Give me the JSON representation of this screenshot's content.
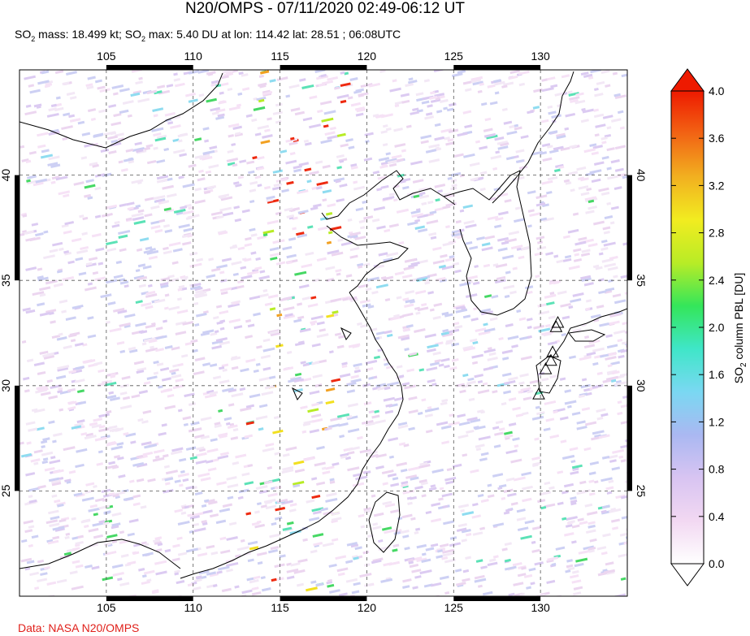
{
  "header": {
    "title": "N20/OMPS - 07/11/2020 02:49-06:12 UT",
    "subtitle_parts": {
      "so2_a": "SO",
      "sub2_a": "2",
      "mass_text": " mass: 18.499 kt; SO",
      "sub2_b": "2",
      "max_text": " max: 5.40 DU at lon: 114.42 lat: 28.51 ; 06:08UTC"
    }
  },
  "footer": {
    "credit": "Data: NASA N20/OMPS"
  },
  "map": {
    "lon_range": [
      100,
      135
    ],
    "lat_range": [
      20,
      45
    ],
    "lon_ticks": [
      "105",
      "110",
      "115",
      "120",
      "125",
      "130"
    ],
    "lat_ticks": [
      "40",
      "35",
      "30",
      "25"
    ],
    "volcano_marker": "triangle"
  },
  "colorbar": {
    "label_main": "SO",
    "label_sub": "2",
    "label_rest": " column PBL [DU]",
    "ticks": [
      "4.0",
      "3.6",
      "3.2",
      "2.8",
      "2.4",
      "2.0",
      "1.6",
      "1.2",
      "0.8",
      "0.4",
      "0.0"
    ],
    "range": [
      0.0,
      4.0
    ],
    "colors": [
      "#ffffff",
      "#f2d8f2",
      "#d8c4f2",
      "#aab8f2",
      "#7ad8f2",
      "#3fe6c8",
      "#34e65a",
      "#b8ec26",
      "#f2ec20",
      "#f2b020",
      "#f26414",
      "#ee1a00"
    ]
  }
}
